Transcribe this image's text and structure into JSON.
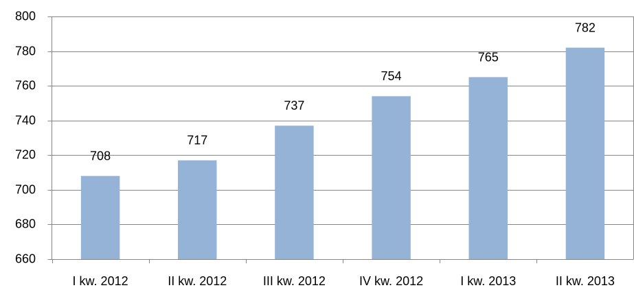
{
  "chart_data": {
    "type": "bar",
    "categories": [
      "I kw. 2012",
      "II kw. 2012",
      "III kw. 2012",
      "IV kw. 2012",
      "I kw. 2013",
      "II kw. 2013"
    ],
    "values": [
      708,
      717,
      737,
      754,
      765,
      782
    ],
    "color": "#95b3d7",
    "ylim": [
      660,
      800
    ],
    "yticks": [
      660,
      680,
      700,
      720,
      740,
      760,
      780,
      800
    ],
    "grid": true
  }
}
